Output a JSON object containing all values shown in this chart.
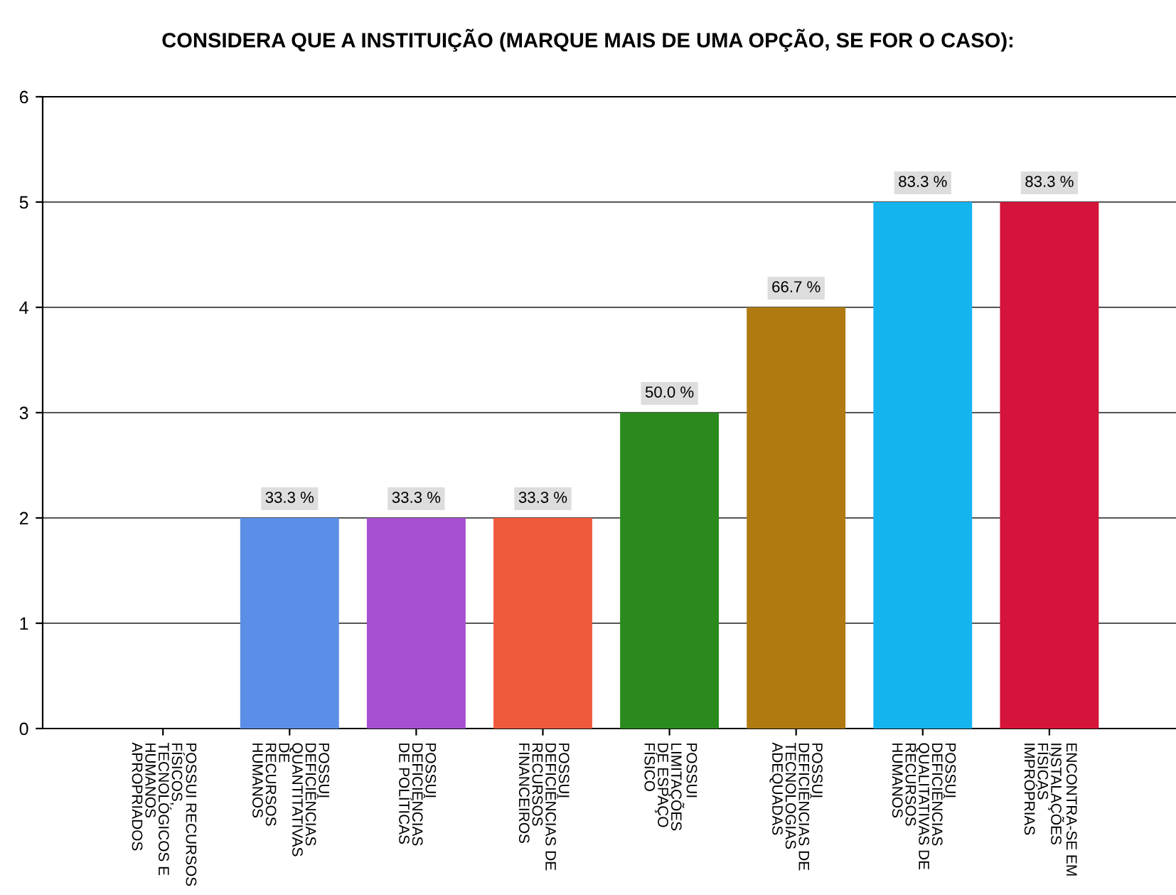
{
  "chart_data": {
    "type": "bar",
    "title": "CONSIDERA QUE A INSTITUIÇÃO (MARQUE MAIS DE UMA OPÇÃO, SE FOR O CASO):",
    "categories": [
      "POSSUI RECURSOS\nFÍSICOS,\nTECNOLÓGICOS E\nHUMANOS\nAPROPRIADOS",
      "POSSUI\nDEFICIÊNCIAS\nQUANTITATIVAS\nDE\nRECURSOS\nHUMANOS",
      "POSSUI\nDEFICIÊNCIAS\nDE POLÍTICAS",
      "POSSUI\nDEFICIÊNCIAS DE\nRECURSOS\nFINANCEIROS",
      "POSSUI\nLIMITAÇÕES\nDE ESPAÇO\nFÍSICO",
      "POSSUI\nDEFICIÊNCIAS DE\nTECNOLOGIAS\nADEQUADAS",
      "POSSUI\nDEFICIÊNCIAS\nQUALITATIVAS DE\nRECURSOS\nHUMANOS",
      "ENCONTRA-SE EM\nINSTALAÇÕES\nFÍSICAS\nIMPRÓPRIAS"
    ],
    "values": [
      0,
      2,
      2,
      2,
      3,
      4,
      5,
      5
    ],
    "colors": [
      "#4472c4",
      "#5b8ee6",
      "#a64fd0",
      "#f05a3c",
      "#2a8a1e",
      "#b07a10",
      "#14b4ef",
      "#d4143a"
    ],
    "annotations": [
      {
        "text": "33.3 %",
        "x": "POSSUI\nDEFICIÊNCIAS\nQUANTITATIVAS\nDE\nRECURSOS\nHUMANOS",
        "y": 2
      },
      {
        "text": "33.3 %",
        "x": "POSSUI\nDEFICIÊNCIAS\nDE POLÍTICAS",
        "y": 2
      },
      {
        "text": "33.3 %",
        "x": "POSSUI\nDEFICIÊNCIAS DE\nRECURSOS\nFINANCEIROS",
        "y": 2
      },
      {
        "text": "50.0 %",
        "x": "POSSUI\nLIMITAÇÕES\nDE ESPAÇO\nFÍSICO",
        "y": 3
      },
      {
        "text": "66.7 %",
        "x": "POSSUI\nDEFICIÊNCIAS DE\nTECNOLOGIAS\nADEQUADAS",
        "y": 4
      },
      {
        "text": "83.3 %",
        "x": "POSSUI\nDEFICIÊNCIAS\nQUALITATIVAS DE\nRECURSOS\nHUMANOS",
        "y": 5
      },
      {
        "text": "83.3 %",
        "x": "ENCONTRA-SE EM\nINSTALAÇÕES\nFÍSICAS\nIMPRÓPRIAS",
        "y": 5
      }
    ],
    "ylim": [
      0,
      6
    ],
    "yticks": [
      0,
      1,
      2,
      3,
      4,
      5,
      6
    ],
    "grid": "y",
    "legend": false
  }
}
